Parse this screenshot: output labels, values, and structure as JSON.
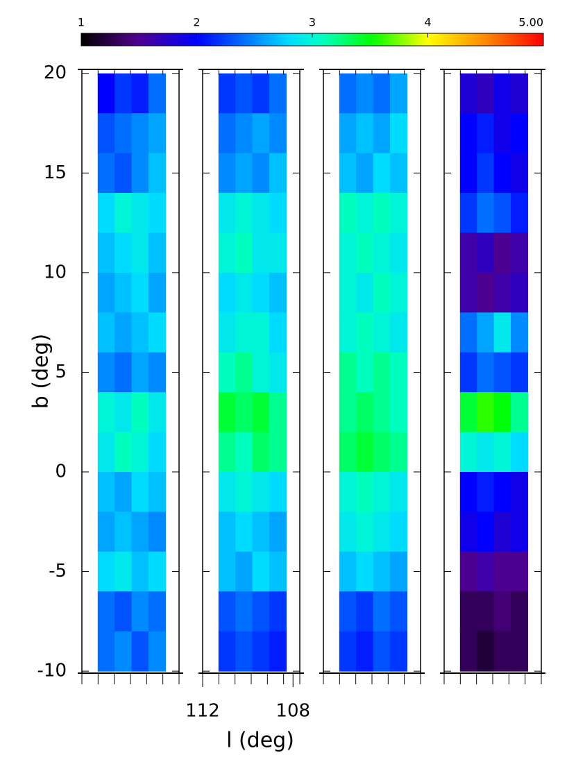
{
  "chart_data": {
    "type": "heatmap",
    "xlabel": "l (deg)",
    "ylabel": "b (deg)",
    "ylim": [
      -10.1,
      20.2
    ],
    "yticks": [
      -10,
      -5,
      0,
      5,
      10,
      15,
      20
    ],
    "xlim": [
      112,
      107.7
    ],
    "x_bins": [
      111.3,
      110.55,
      109.8,
      109.05,
      108.3
    ],
    "y_bins": [
      20,
      18,
      16,
      14,
      12,
      10,
      8,
      6,
      4,
      2,
      0,
      -2,
      -4,
      -6,
      -8,
      -10
    ],
    "colorbar": {
      "lim": [
        1,
        5
      ],
      "ticks": [
        1,
        2,
        3,
        4,
        {
          "value": 5,
          "label": "5.00"
        }
      ],
      "colormap": "rainbow"
    },
    "panels": [
      {
        "z": [
          [
            2.0,
            2.2,
            2.1,
            2.4
          ],
          [
            2.3,
            2.4,
            2.5,
            2.6
          ],
          [
            2.4,
            2.3,
            2.5,
            2.7
          ],
          [
            2.8,
            3.0,
            2.9,
            2.8
          ],
          [
            2.7,
            2.8,
            2.9,
            2.7
          ],
          [
            2.6,
            2.7,
            2.8,
            2.6
          ],
          [
            2.7,
            2.6,
            2.7,
            2.8
          ],
          [
            2.5,
            2.4,
            2.6,
            2.5
          ],
          [
            3.0,
            2.9,
            3.1,
            2.9
          ],
          [
            2.9,
            3.1,
            3.0,
            2.8
          ],
          [
            2.7,
            2.6,
            2.8,
            2.7
          ],
          [
            2.6,
            2.7,
            2.6,
            2.5
          ],
          [
            2.8,
            2.9,
            2.7,
            2.8
          ],
          [
            2.4,
            2.3,
            2.5,
            2.4
          ],
          [
            2.4,
            2.5,
            2.3,
            2.5
          ]
        ]
      },
      {
        "z": [
          [
            2.2,
            2.3,
            2.2,
            2.4
          ],
          [
            2.4,
            2.5,
            2.6,
            2.5
          ],
          [
            2.5,
            2.6,
            2.5,
            2.7
          ],
          [
            2.9,
            3.0,
            2.9,
            2.8
          ],
          [
            3.0,
            3.1,
            2.9,
            2.9
          ],
          [
            2.8,
            2.9,
            2.8,
            2.7
          ],
          [
            2.9,
            3.0,
            3.0,
            2.8
          ],
          [
            3.1,
            3.2,
            3.0,
            2.9
          ],
          [
            3.4,
            3.3,
            3.4,
            3.2
          ],
          [
            3.2,
            3.1,
            3.3,
            3.2
          ],
          [
            2.9,
            3.0,
            2.9,
            2.8
          ],
          [
            2.7,
            2.8,
            2.7,
            2.6
          ],
          [
            2.7,
            2.6,
            2.8,
            2.7
          ],
          [
            2.3,
            2.4,
            2.3,
            2.2
          ],
          [
            2.2,
            2.3,
            2.2,
            2.1
          ]
        ],
        "xticks": [
          112,
          108
        ]
      },
      {
        "z": [
          [
            2.4,
            2.5,
            2.4,
            2.6
          ],
          [
            2.6,
            2.7,
            2.6,
            2.8
          ],
          [
            2.7,
            2.6,
            2.8,
            2.7
          ],
          [
            3.1,
            3.0,
            3.1,
            3.0
          ],
          [
            3.0,
            3.1,
            3.0,
            2.9
          ],
          [
            3.0,
            2.9,
            3.1,
            3.0
          ],
          [
            3.0,
            3.1,
            3.0,
            2.9
          ],
          [
            3.2,
            3.1,
            3.2,
            3.1
          ],
          [
            3.2,
            3.3,
            3.2,
            3.1
          ],
          [
            3.3,
            3.4,
            3.3,
            3.2
          ],
          [
            3.0,
            3.1,
            3.0,
            2.9
          ],
          [
            2.9,
            3.0,
            2.9,
            2.8
          ],
          [
            2.7,
            2.8,
            2.7,
            2.6
          ],
          [
            2.3,
            2.2,
            2.4,
            2.3
          ],
          [
            2.2,
            2.1,
            2.3,
            2.2
          ]
        ]
      },
      {
        "z": [
          [
            1.8,
            1.7,
            1.9,
            1.8
          ],
          [
            2.0,
            2.1,
            1.9,
            2.0
          ],
          [
            2.0,
            2.2,
            2.0,
            1.9
          ],
          [
            2.2,
            2.4,
            2.3,
            2.1
          ],
          [
            1.6,
            1.7,
            1.5,
            1.6
          ],
          [
            1.6,
            1.5,
            1.6,
            1.7
          ],
          [
            2.4,
            2.6,
            2.9,
            2.5
          ],
          [
            2.2,
            2.4,
            2.3,
            2.2
          ],
          [
            3.4,
            3.6,
            3.5,
            3.2
          ],
          [
            3.0,
            2.9,
            3.0,
            2.8
          ],
          [
            2.0,
            2.1,
            2.0,
            1.9
          ],
          [
            1.9,
            2.0,
            1.8,
            1.9
          ],
          [
            1.5,
            1.6,
            1.5,
            1.5
          ],
          [
            1.3,
            1.3,
            1.4,
            1.3
          ],
          [
            1.3,
            1.2,
            1.3,
            1.3
          ]
        ]
      }
    ]
  }
}
